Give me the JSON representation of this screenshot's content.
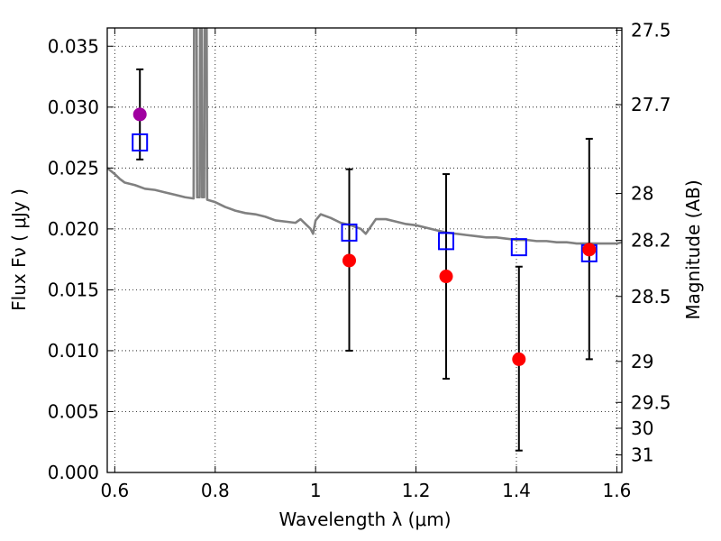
{
  "chart_data": {
    "type": "scatter",
    "xlabel": "Wavelength  λ (μm)",
    "ylabel": "Flux  Fν  ( μJy )",
    "y2label": "Magnitude (AB)",
    "xlim": [
      0.585,
      1.61
    ],
    "ylim": [
      0.0,
      0.0365
    ],
    "grid": true,
    "x_ticks": [
      {
        "value": 0.6,
        "label": "0.6"
      },
      {
        "value": 0.8,
        "label": "0.8"
      },
      {
        "value": 1.0,
        "label": "1"
      },
      {
        "value": 1.2,
        "label": "1.2"
      },
      {
        "value": 1.4,
        "label": "1.4"
      },
      {
        "value": 1.6,
        "label": "1.6"
      }
    ],
    "y_ticks": [
      {
        "value": 0.0,
        "label": "0.000"
      },
      {
        "value": 0.005,
        "label": "0.005"
      },
      {
        "value": 0.01,
        "label": "0.010"
      },
      {
        "value": 0.015,
        "label": "0.015"
      },
      {
        "value": 0.02,
        "label": "0.020"
      },
      {
        "value": 0.025,
        "label": "0.025"
      },
      {
        "value": 0.03,
        "label": "0.030"
      },
      {
        "value": 0.035,
        "label": "0.035"
      }
    ],
    "y2_ticks": [
      {
        "mag": 27.5,
        "label": "27.5"
      },
      {
        "mag": 27.7,
        "label": "27.7"
      },
      {
        "mag": 28.0,
        "label": "28"
      },
      {
        "mag": 28.2,
        "label": "28.2"
      },
      {
        "mag": 28.5,
        "label": "28.5"
      },
      {
        "mag": 29.0,
        "label": "29"
      },
      {
        "mag": 29.5,
        "label": "29.5"
      },
      {
        "mag": 30.0,
        "label": "30"
      },
      {
        "mag": 31.0,
        "label": "31"
      }
    ],
    "sed_model": {
      "color": "#808080",
      "points": [
        [
          0.585,
          0.025
        ],
        [
          0.6,
          0.0245
        ],
        [
          0.61,
          0.0241
        ],
        [
          0.62,
          0.0238
        ],
        [
          0.64,
          0.0236
        ],
        [
          0.66,
          0.0233
        ],
        [
          0.68,
          0.0232
        ],
        [
          0.7,
          0.023
        ],
        [
          0.72,
          0.0228
        ],
        [
          0.74,
          0.0226
        ],
        [
          0.757,
          0.0225
        ],
        [
          0.758,
          0.0365
        ],
        [
          0.763,
          0.0365
        ],
        [
          0.764,
          0.0226
        ],
        [
          0.769,
          0.0226
        ],
        [
          0.77,
          0.0365
        ],
        [
          0.773,
          0.0365
        ],
        [
          0.774,
          0.0226
        ],
        [
          0.778,
          0.0226
        ],
        [
          0.779,
          0.0365
        ],
        [
          0.783,
          0.0365
        ],
        [
          0.784,
          0.0224
        ],
        [
          0.8,
          0.0222
        ],
        [
          0.82,
          0.0218
        ],
        [
          0.84,
          0.0215
        ],
        [
          0.86,
          0.0213
        ],
        [
          0.88,
          0.0212
        ],
        [
          0.9,
          0.021
        ],
        [
          0.92,
          0.0207
        ],
        [
          0.94,
          0.0206
        ],
        [
          0.96,
          0.0205
        ],
        [
          0.97,
          0.0208
        ],
        [
          0.98,
          0.0204
        ],
        [
          0.99,
          0.02
        ],
        [
          0.995,
          0.0196
        ],
        [
          1.0,
          0.0207
        ],
        [
          1.01,
          0.0212
        ],
        [
          1.03,
          0.0209
        ],
        [
          1.05,
          0.0205
        ],
        [
          1.07,
          0.0203
        ],
        [
          1.09,
          0.02
        ],
        [
          1.1,
          0.0196
        ],
        [
          1.12,
          0.0208
        ],
        [
          1.14,
          0.0208
        ],
        [
          1.16,
          0.0206
        ],
        [
          1.18,
          0.0204
        ],
        [
          1.2,
          0.0203
        ],
        [
          1.22,
          0.0201
        ],
        [
          1.24,
          0.0199
        ],
        [
          1.26,
          0.0197
        ],
        [
          1.28,
          0.0196
        ],
        [
          1.3,
          0.0195
        ],
        [
          1.32,
          0.0194
        ],
        [
          1.34,
          0.0193
        ],
        [
          1.36,
          0.0193
        ],
        [
          1.38,
          0.0192
        ],
        [
          1.4,
          0.0191
        ],
        [
          1.42,
          0.0191
        ],
        [
          1.44,
          0.019
        ],
        [
          1.46,
          0.019
        ],
        [
          1.48,
          0.0189
        ],
        [
          1.5,
          0.0189
        ],
        [
          1.52,
          0.0188
        ],
        [
          1.54,
          0.0188
        ],
        [
          1.56,
          0.0188
        ],
        [
          1.58,
          0.0188
        ],
        [
          1.6,
          0.0188
        ],
        [
          1.61,
          0.0189
        ]
      ]
    },
    "model_photometry": {
      "marker": "open-square",
      "color": "#0000ff",
      "points": [
        {
          "x": 0.65,
          "y": 0.0271
        },
        {
          "x": 1.067,
          "y": 0.0197
        },
        {
          "x": 1.26,
          "y": 0.019
        },
        {
          "x": 1.405,
          "y": 0.0185
        },
        {
          "x": 1.545,
          "y": 0.018
        }
      ]
    },
    "observed_photometry": {
      "marker": "filled-circle",
      "points": [
        {
          "x": 0.65,
          "y": 0.0294,
          "yerr_low": 0.0257,
          "yerr_high": 0.0331,
          "color": "#a000a0"
        },
        {
          "x": 1.067,
          "y": 0.0174,
          "yerr_low": 0.01,
          "yerr_high": 0.0249,
          "color": "#ff0000"
        },
        {
          "x": 1.26,
          "y": 0.0161,
          "yerr_low": 0.0077,
          "yerr_high": 0.0245,
          "color": "#ff0000"
        },
        {
          "x": 1.405,
          "y": 0.0093,
          "yerr_low": 0.0018,
          "yerr_high": 0.0169,
          "color": "#ff0000"
        },
        {
          "x": 1.545,
          "y": 0.0183,
          "yerr_low": 0.0093,
          "yerr_high": 0.0274,
          "color": "#ff0000"
        }
      ]
    }
  }
}
